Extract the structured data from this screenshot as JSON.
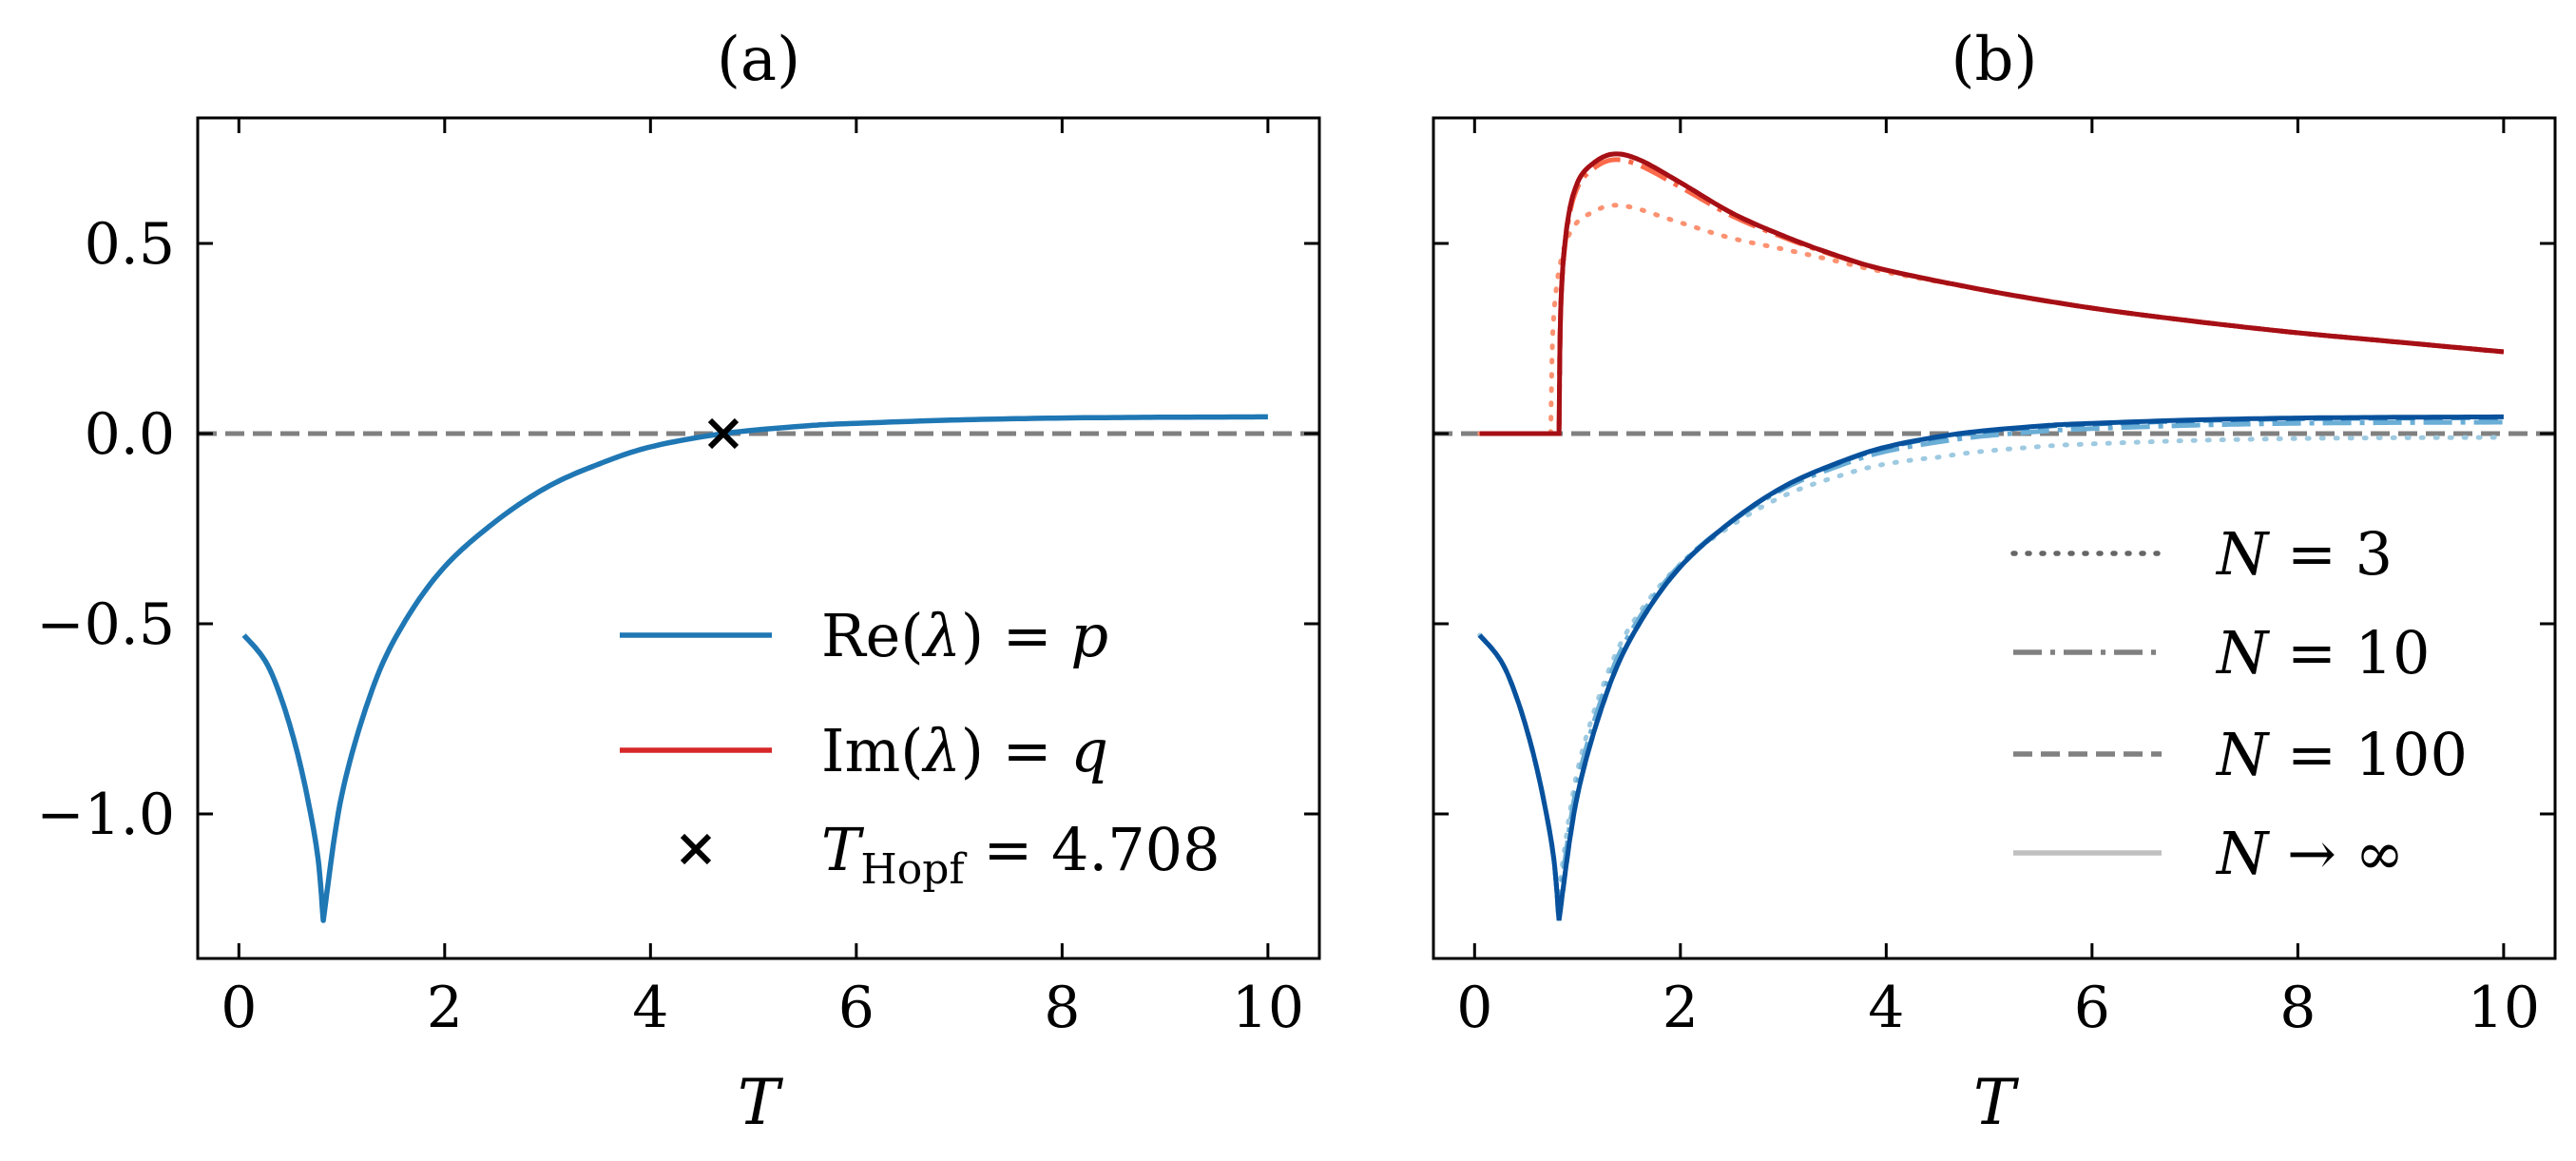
{
  "figure": {
    "panels": [
      {
        "title": "(a)",
        "xlabel": "T",
        "xlim": [
          -0.4,
          10.5
        ],
        "ylim": [
          -1.38,
          0.83
        ],
        "xticks": [
          0,
          2,
          4,
          6,
          8,
          10
        ],
        "xtick_labels": [
          "0",
          "2",
          "4",
          "6",
          "8",
          "10"
        ],
        "yticks": [
          0.5,
          0.0,
          -0.5,
          -1.0
        ],
        "ytick_labels": [
          "0.5",
          "0.0",
          "−0.5",
          "−1.0"
        ],
        "legend": [
          {
            "pre": "Re(",
            "sym": "λ",
            "mid": ") = ",
            "var": "p"
          },
          {
            "pre": "Im(",
            "sym": "λ",
            "mid": ") = ",
            "var": "q"
          },
          {
            "pre": "T",
            "sub": "Hopf",
            "mid": " = 4.708"
          }
        ]
      },
      {
        "title": "(b)",
        "xlabel": "T",
        "xlim": [
          -0.4,
          10.5
        ],
        "ylim": [
          -1.38,
          0.83
        ],
        "xticks": [
          0,
          2,
          4,
          6,
          8,
          10
        ],
        "xtick_labels": [
          "0",
          "2",
          "4",
          "6",
          "8",
          "10"
        ],
        "legend": [
          {
            "var": "N",
            "mid": " = 3"
          },
          {
            "var": "N",
            "mid": " = 10"
          },
          {
            "var": "N",
            "mid": " = 100"
          },
          {
            "var": "N",
            "mid": " → ∞"
          }
        ]
      }
    ]
  },
  "chart_data": {
    "type": "line",
    "model": {
      "description": "Eigenvalue lambda = p + i q versus T; p(T) and q(T) sampled from curves",
      "hopf_point": {
        "T": 4.708,
        "value": 0.0,
        "label": "T_Hopf = 4.708"
      },
      "bifurcation_T": 0.82,
      "p_samples": [
        [
          0.05,
          -0.53
        ],
        [
          0.3,
          -0.62
        ],
        [
          0.55,
          -0.82
        ],
        [
          0.75,
          -1.08
        ],
        [
          0.82,
          -1.28
        ],
        [
          1.0,
          -0.95
        ],
        [
          1.3,
          -0.67
        ],
        [
          1.6,
          -0.5
        ],
        [
          2.0,
          -0.35
        ],
        [
          2.5,
          -0.23
        ],
        [
          3.0,
          -0.14
        ],
        [
          3.5,
          -0.08
        ],
        [
          4.0,
          -0.035
        ],
        [
          4.708,
          0.0
        ],
        [
          5.5,
          0.02
        ],
        [
          6.0,
          0.027
        ],
        [
          7.0,
          0.036
        ],
        [
          8.0,
          0.041
        ],
        [
          9.0,
          0.043
        ],
        [
          10.0,
          0.044
        ]
      ],
      "q_samples": [
        [
          0.05,
          0.0
        ],
        [
          0.82,
          0.0
        ],
        [
          0.84,
          0.35
        ],
        [
          0.9,
          0.55
        ],
        [
          1.0,
          0.66
        ],
        [
          1.15,
          0.71
        ],
        [
          1.35,
          0.735
        ],
        [
          1.6,
          0.72
        ],
        [
          2.0,
          0.66
        ],
        [
          2.5,
          0.58
        ],
        [
          3.0,
          0.52
        ],
        [
          3.5,
          0.47
        ],
        [
          4.0,
          0.43
        ],
        [
          5.0,
          0.375
        ],
        [
          6.0,
          0.33
        ],
        [
          7.0,
          0.295
        ],
        [
          8.0,
          0.265
        ],
        [
          9.0,
          0.24
        ],
        [
          10.0,
          0.215
        ]
      ]
    },
    "panel_b_series": [
      {
        "name": "N = 3",
        "style": "dotted",
        "q_peak": 0.6,
        "p_end": -0.01,
        "bifurcation_T": 0.74
      },
      {
        "name": "N = 10",
        "style": "dashdot",
        "q_peak": 0.72,
        "p_end": 0.03,
        "bifurcation_T": 0.82
      },
      {
        "name": "N = 100",
        "style": "dashed",
        "q_peak": 0.735,
        "p_end": 0.042,
        "bifurcation_T": 0.82
      },
      {
        "name": "N → ∞",
        "style": "solid",
        "q_peak": 0.735,
        "p_end": 0.044,
        "bifurcation_T": 0.82
      }
    ],
    "colors": {
      "re": "#1f77b4",
      "im": "#d62728",
      "zero_line": "#808080",
      "blues": [
        "#9ecae1",
        "#6baed6",
        "#3182bd",
        "#08519c"
      ],
      "reds": [
        "#fc9272",
        "#fb6a4a",
        "#de2d26",
        "#a50f15"
      ],
      "legend_gray": [
        "#666666",
        "#808080",
        "#808080",
        "#c0c0c0"
      ]
    }
  }
}
